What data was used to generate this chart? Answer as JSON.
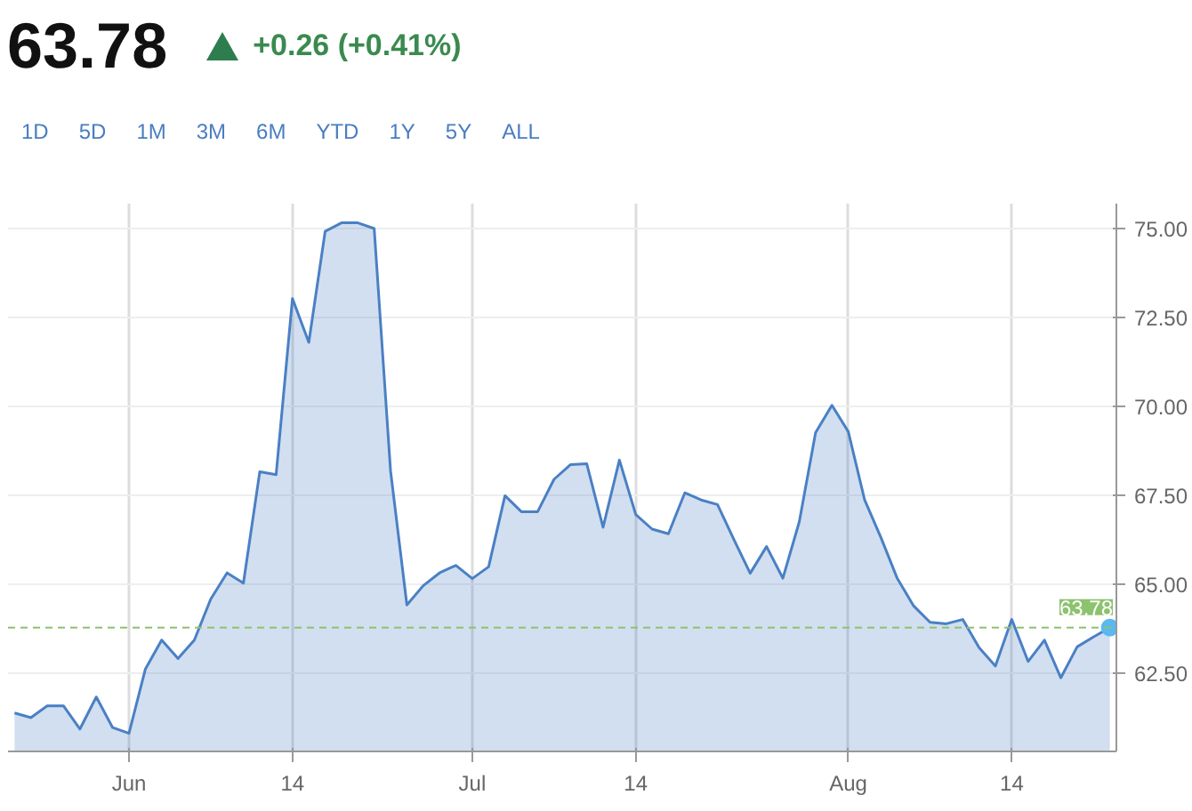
{
  "chart_data": {
    "type": "area",
    "title": "63.78",
    "subtitle": "+0.26 (+0.41%)",
    "annotations": [
      "1D",
      "5D",
      "1M",
      "3M",
      "6M",
      "YTD",
      "1Y",
      "5Y",
      "ALL"
    ],
    "categories": [
      null,
      null,
      null,
      null,
      null,
      null,
      null,
      "Jun",
      null,
      null,
      null,
      null,
      null,
      null,
      null,
      null,
      null,
      "14",
      null,
      null,
      null,
      null,
      null,
      null,
      null,
      null,
      null,
      null,
      "Jul",
      null,
      null,
      null,
      null,
      null,
      null,
      null,
      null,
      null,
      "14",
      null,
      null,
      null,
      null,
      null,
      null,
      null,
      null,
      null,
      null,
      null,
      null,
      "Aug",
      null,
      null,
      null,
      null,
      null,
      null,
      null,
      null,
      null,
      "14",
      null,
      null,
      null,
      null,
      null,
      null
    ],
    "series": [
      {
        "color": "#4a80c4",
        "values": [
          61.38,
          61.25,
          61.58,
          61.58,
          60.93,
          61.83,
          60.97,
          60.81,
          62.61,
          63.43,
          62.91,
          63.43,
          64.58,
          65.32,
          65.03,
          68.16,
          68.08,
          73.03,
          71.8,
          74.92,
          75.16,
          75.16,
          75.0,
          68.19,
          64.42,
          64.96,
          65.32,
          65.53,
          65.16,
          65.49,
          67.49,
          67.04,
          67.04,
          67.95,
          68.36,
          68.39,
          66.6,
          68.49,
          66.96,
          66.55,
          66.42,
          67.57,
          67.37,
          67.24,
          66.26,
          65.31,
          66.06,
          65.17,
          66.75,
          69.26,
          70.03,
          69.29,
          67.37,
          66.31,
          65.16,
          64.39,
          63.93,
          63.89,
          64.01,
          63.22,
          62.7,
          64.01,
          62.83,
          63.43,
          62.37,
          63.24,
          63.52,
          63.78
        ]
      }
    ],
    "ylim": [
      60.3,
      75.7
    ],
    "yticks": [
      {
        "value": 62.5,
        "label": "62.50"
      },
      {
        "value": 65,
        "label": "65.00"
      },
      {
        "value": 67.5,
        "label": "67.50"
      },
      {
        "value": 70,
        "label": "70.00"
      },
      {
        "value": 72.5,
        "label": "72.50"
      },
      {
        "value": 75,
        "label": "75.00"
      }
    ],
    "ref_lines": [
      {
        "axis": "y",
        "value": 63.78,
        "label": "63.78",
        "color": "#8dc26f",
        "line_style": "dashed"
      }
    ],
    "grid": true
  }
}
